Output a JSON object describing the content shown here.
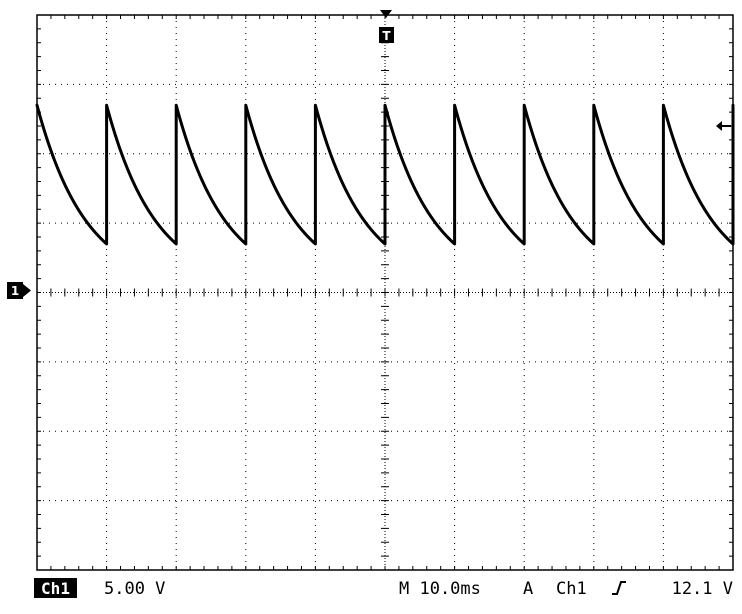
{
  "status_bar": {
    "channel_badge": "Ch1",
    "volts_per_div": "5.00 V",
    "timebase": "M 10.0ms",
    "trigger_mode": "A",
    "trigger_source": "Ch1",
    "trigger_slope_icon": "rising-edge-icon",
    "trigger_level": "12.1 V"
  },
  "markers": {
    "trigger_position": "T",
    "channel_ground": "1",
    "trigger_level_icon": "left-arrow-icon"
  },
  "colors": {
    "trace": "#000000",
    "graticule": "#000000",
    "background": "#ffffff",
    "badge_bg": "#000000"
  },
  "chart_data": {
    "type": "line",
    "title": "",
    "xlabel": "",
    "ylabel": "",
    "x_divisions": 10,
    "y_divisions": 8,
    "x_unit_per_div": "10.0ms",
    "y_unit_per_div": "5.00 V",
    "xlim": [
      -50,
      50
    ],
    "ylim": [
      -20,
      20
    ],
    "grid": true,
    "series": [
      {
        "shape": "sawtooth-exponential-decay",
        "period_ms": 10.0,
        "peak_v": 13.5,
        "trough_v": 3.5,
        "first_peak_ms": -50.0,
        "decay_tau_ms": 7.0
      }
    ]
  }
}
